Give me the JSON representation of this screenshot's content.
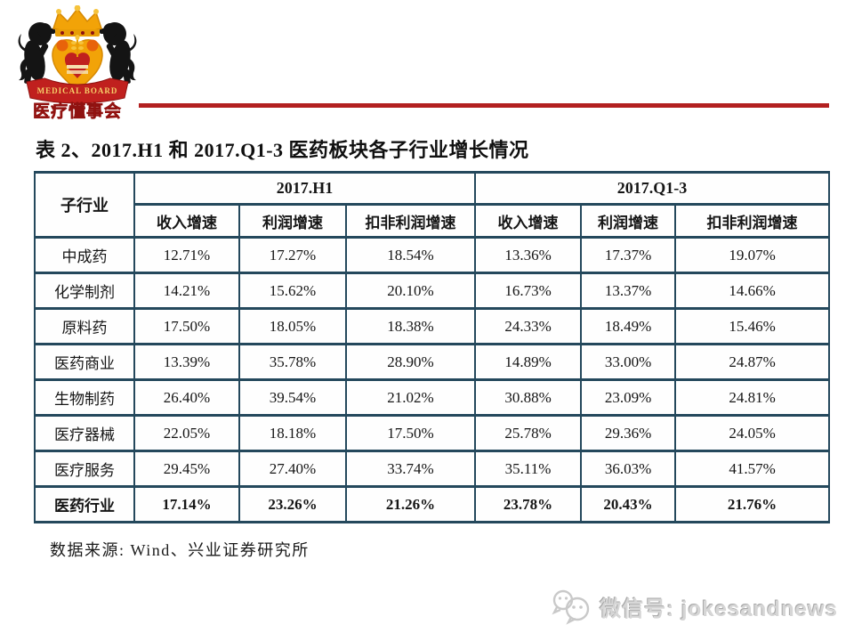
{
  "logo": {
    "banner_text": "MEDICAL BOARD",
    "brand_text": "医疗懂事会"
  },
  "title": "表 2、2017.H1 和 2017.Q1-3 医药板块各子行业增长情况",
  "table": {
    "corner_header": "子行业",
    "groups": [
      {
        "label": "2017.H1",
        "subheaders": [
          "收入增速",
          "利润增速",
          "扣非利润增速"
        ]
      },
      {
        "label": "2017.Q1-3",
        "subheaders": [
          "收入增速",
          "利润增速",
          "扣非利润增速"
        ]
      }
    ],
    "rows": [
      {
        "name": "中成药",
        "bold": false,
        "values": [
          "12.71%",
          "17.27%",
          "18.54%",
          "13.36%",
          "17.37%",
          "19.07%"
        ]
      },
      {
        "name": "化学制剂",
        "bold": false,
        "values": [
          "14.21%",
          "15.62%",
          "20.10%",
          "16.73%",
          "13.37%",
          "14.66%"
        ]
      },
      {
        "name": "原料药",
        "bold": false,
        "values": [
          "17.50%",
          "18.05%",
          "18.38%",
          "24.33%",
          "18.49%",
          "15.46%"
        ]
      },
      {
        "name": "医药商业",
        "bold": false,
        "values": [
          "13.39%",
          "35.78%",
          "28.90%",
          "14.89%",
          "33.00%",
          "24.87%"
        ]
      },
      {
        "name": "生物制药",
        "bold": false,
        "values": [
          "26.40%",
          "39.54%",
          "21.02%",
          "30.88%",
          "23.09%",
          "24.81%"
        ]
      },
      {
        "name": "医疗器械",
        "bold": false,
        "values": [
          "22.05%",
          "18.18%",
          "17.50%",
          "25.78%",
          "29.36%",
          "24.05%"
        ]
      },
      {
        "name": "医疗服务",
        "bold": false,
        "values": [
          "29.45%",
          "27.40%",
          "33.74%",
          "35.11%",
          "36.03%",
          "41.57%"
        ]
      },
      {
        "name": "医药行业",
        "bold": true,
        "values": [
          "17.14%",
          "23.26%",
          "21.26%",
          "23.78%",
          "20.43%",
          "21.76%"
        ]
      }
    ],
    "source_note": "数据来源: Wind、兴业证券研究所"
  },
  "footer": {
    "wechat_label": "微信号: jokesandnews"
  },
  "colors": {
    "table_border": "#24485c",
    "rule_red": "#b32020",
    "logo_gold": "#f2a308",
    "logo_red": "#c0201e",
    "watermark_gray": "#d6d6d6"
  }
}
